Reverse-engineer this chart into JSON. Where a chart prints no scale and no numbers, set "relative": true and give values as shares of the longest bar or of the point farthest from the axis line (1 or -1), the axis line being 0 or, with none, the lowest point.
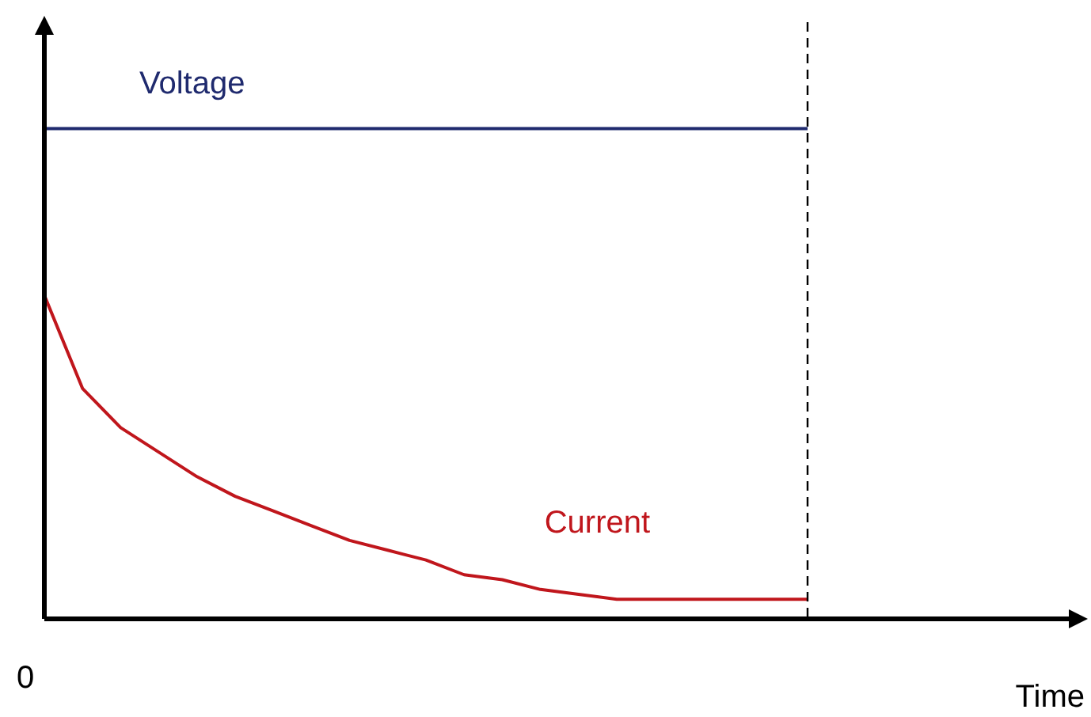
{
  "chart_data": {
    "type": "line",
    "relative": true,
    "annotations": [
      "0",
      "Time"
    ],
    "legend": false,
    "marker": "none",
    "line_style": "solid",
    "categories": [
      null,
      null,
      null,
      null,
      null,
      null,
      null,
      null,
      null,
      null,
      null,
      null,
      null,
      null,
      null,
      null,
      null,
      null,
      null,
      null,
      null
    ],
    "series": [
      {
        "name": "Voltage",
        "color": "#1f2a6e",
        "values": [
          1,
          1,
          1,
          1,
          1,
          1,
          1,
          1,
          1,
          1,
          1,
          1,
          1,
          1,
          1,
          1,
          1,
          1,
          1,
          1,
          1
        ]
      },
      {
        "name": "Current",
        "color": "#c0161c",
        "values": [
          0.66,
          0.47,
          0.39,
          0.34,
          0.29,
          0.25,
          0.22,
          0.19,
          0.16,
          0.14,
          0.12,
          0.09,
          0.08,
          0.06,
          0.05,
          0.04,
          0.04,
          0.04,
          0.04,
          0.04,
          0.04
        ]
      }
    ],
    "ref_lines": [
      {
        "axis": "x",
        "line_style": "dashed",
        "color": "#000000"
      }
    ]
  }
}
